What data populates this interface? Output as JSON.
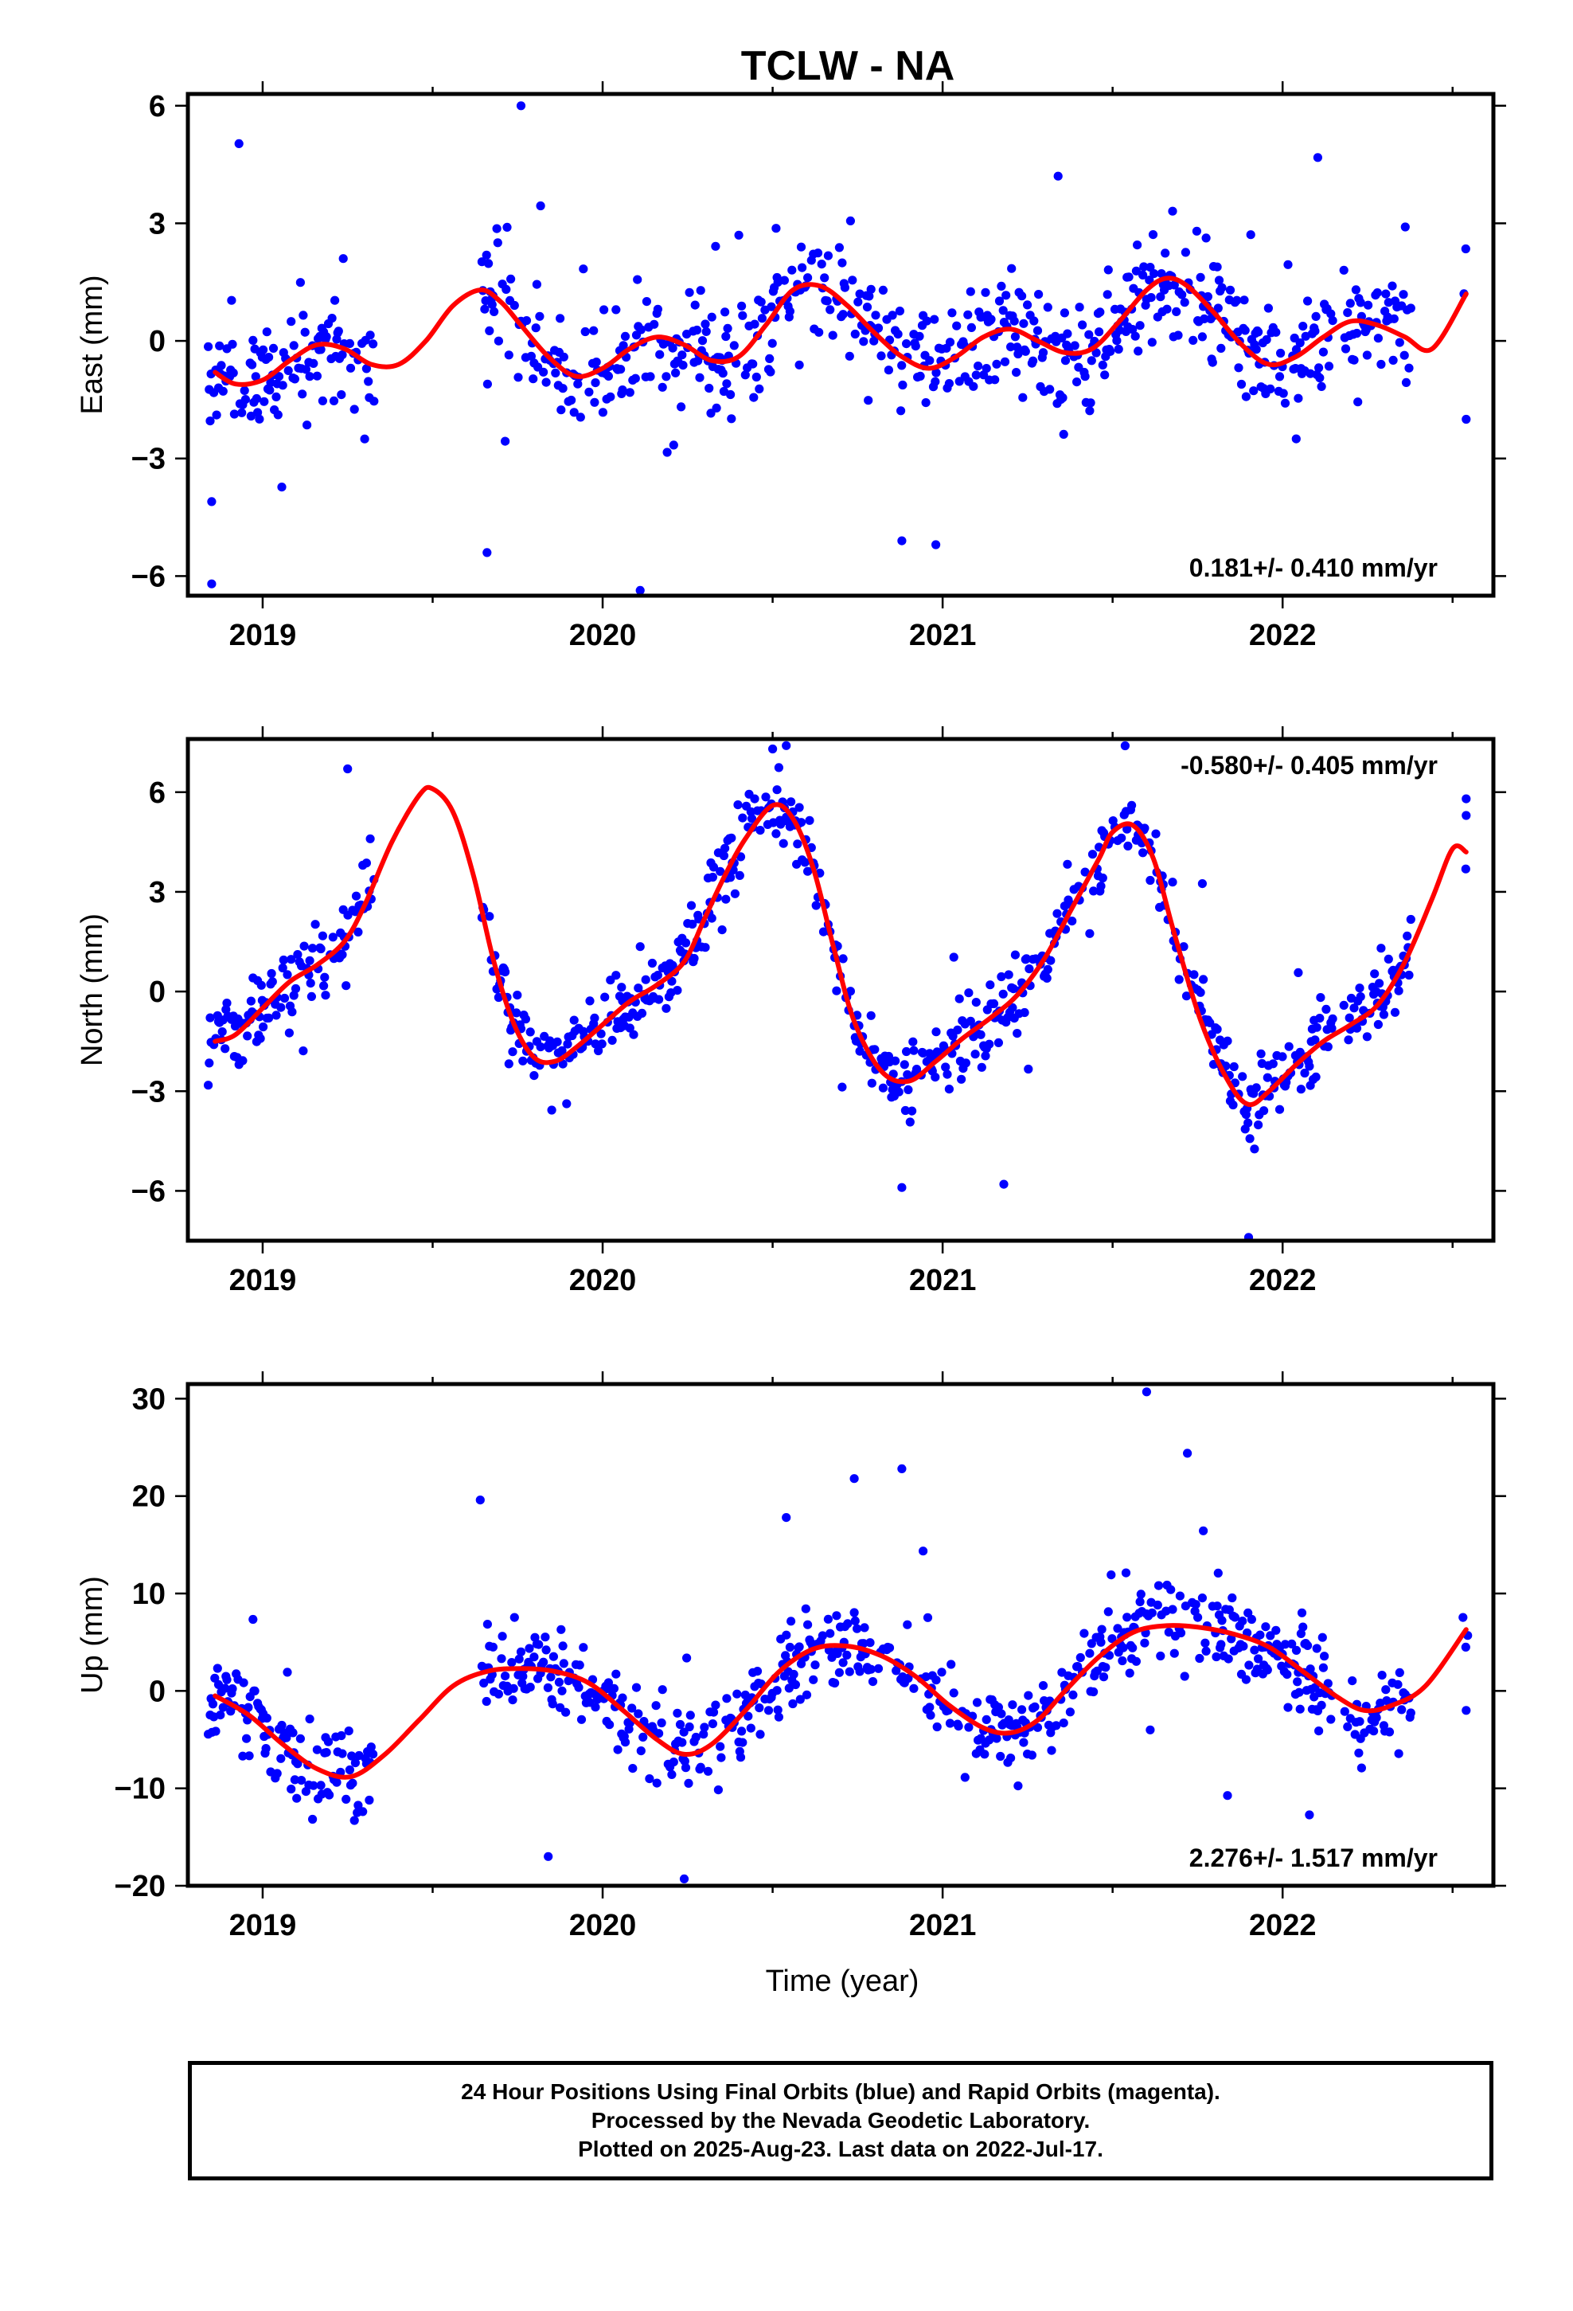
{
  "title": "TCLW - NA",
  "xlabel": "Time (year)",
  "caption": [
    "24 Hour Positions Using Final Orbits (blue) and Rapid Orbits (magenta).",
    "Processed by the Nevada Geodetic Laboratory.",
    "Plotted on 2025-Aug-23. Last data on 2022-Jul-17."
  ],
  "colors": {
    "final_orbits": "#0000ff",
    "model_fit": "#ff0000",
    "axes": "#000000"
  },
  "chart_data": [
    {
      "type": "scatter",
      "ylabel": "East (mm)",
      "rate_label": "0.181+/- 0.410 mm/yr",
      "xlim": [
        2018.78,
        2022.62
      ],
      "ylim": [
        -6.5,
        6.3
      ],
      "xticks": [
        2019,
        2020,
        2021,
        2022
      ],
      "xtick_labels": [
        "2019",
        "2020",
        "2021",
        "2022"
      ],
      "yticks": [
        -6,
        -3,
        0,
        3,
        6
      ],
      "ytick_labels": [
        "−6",
        "−3",
        "0",
        "3",
        "6"
      ],
      "fit": {
        "name": "model",
        "x": [
          2018.86,
          2018.92,
          2019.0,
          2019.08,
          2019.16,
          2019.24,
          2019.32,
          2019.4,
          2019.48,
          2019.56,
          2019.64,
          2019.7,
          2019.76,
          2019.84,
          2019.92,
          2020.0,
          2020.08,
          2020.16,
          2020.24,
          2020.32,
          2020.4,
          2020.48,
          2020.56,
          2020.64,
          2020.72,
          2020.8,
          2020.88,
          2020.96,
          2021.04,
          2021.12,
          2021.2,
          2021.28,
          2021.36,
          2021.44,
          2021.52,
          2021.6,
          2021.66,
          2021.72,
          2021.8,
          2021.88,
          2021.96,
          2022.04,
          2022.12,
          2022.2,
          2022.28,
          2022.36,
          2022.44,
          2022.54
        ],
        "y": [
          -0.8,
          -1.1,
          -1.0,
          -0.5,
          -0.1,
          -0.2,
          -0.6,
          -0.6,
          0.0,
          0.9,
          1.3,
          1.0,
          0.4,
          -0.4,
          -0.9,
          -0.7,
          -0.2,
          0.1,
          -0.1,
          -0.5,
          -0.4,
          0.4,
          1.3,
          1.4,
          0.9,
          0.2,
          -0.4,
          -0.7,
          -0.4,
          0.1,
          0.3,
          0.0,
          -0.3,
          -0.2,
          0.5,
          1.3,
          1.6,
          1.4,
          0.7,
          -0.1,
          -0.6,
          -0.4,
          0.1,
          0.5,
          0.4,
          0.1,
          -0.2,
          1.2
        ]
      },
      "obs_model": {
        "seed": 11,
        "noise": 1.25,
        "outlier_rate": 0.05,
        "outlier_scale": 3.2
      },
      "obs_extra": {
        "x": [
          2018.85,
          2018.85,
          2019.66,
          2019.76,
          2020.88,
          2020.98,
          2022.04,
          2022.54
        ],
        "y": [
          -6.2,
          -4.1,
          -5.4,
          6.0,
          -5.1,
          -5.2,
          -2.5,
          -2.0
        ]
      }
    },
    {
      "type": "scatter",
      "ylabel": "North (mm)",
      "rate_label": "-0.580+/- 0.405 mm/yr",
      "xlim": [
        2018.78,
        2022.62
      ],
      "ylim": [
        -7.5,
        7.6
      ],
      "xticks": [
        2019,
        2020,
        2021,
        2022
      ],
      "xtick_labels": [
        "2019",
        "2020",
        "2021",
        "2022"
      ],
      "yticks": [
        -6,
        -3,
        0,
        3,
        6
      ],
      "ytick_labels": [
        "−6",
        "−3",
        "0",
        "3",
        "6"
      ],
      "fit": {
        "name": "model",
        "x": [
          2018.86,
          2018.92,
          2019.0,
          2019.08,
          2019.16,
          2019.24,
          2019.3,
          2019.38,
          2019.46,
          2019.5,
          2019.56,
          2019.62,
          2019.68,
          2019.74,
          2019.8,
          2019.86,
          2019.92,
          2020.0,
          2020.08,
          2020.16,
          2020.24,
          2020.3,
          2020.36,
          2020.42,
          2020.5,
          2020.56,
          2020.62,
          2020.68,
          2020.74,
          2020.82,
          2020.9,
          2020.98,
          2021.06,
          2021.14,
          2021.22,
          2021.3,
          2021.38,
          2021.46,
          2021.5,
          2021.56,
          2021.62,
          2021.68,
          2021.76,
          2021.84,
          2021.9,
          2021.96,
          2022.04,
          2022.12,
          2022.2,
          2022.28,
          2022.36,
          2022.44,
          2022.5,
          2022.54
        ],
        "y": [
          -1.5,
          -1.3,
          -0.5,
          0.3,
          0.8,
          1.5,
          2.6,
          4.5,
          5.9,
          6.1,
          5.4,
          3.5,
          0.9,
          -1.0,
          -2.0,
          -2.1,
          -1.7,
          -1.0,
          -0.3,
          0.2,
          0.9,
          2.2,
          3.5,
          4.6,
          5.6,
          5.2,
          3.7,
          1.3,
          -0.9,
          -2.4,
          -2.7,
          -2.1,
          -1.4,
          -0.8,
          -0.1,
          1.0,
          2.5,
          4.0,
          4.8,
          5.0,
          4.0,
          1.8,
          -0.9,
          -2.7,
          -3.4,
          -3.0,
          -2.2,
          -1.5,
          -1.0,
          -0.4,
          0.9,
          2.8,
          4.3,
          4.2
        ]
      },
      "obs_model": {
        "seed": 23,
        "noise": 1.0,
        "outlier_rate": 0.04,
        "outlier_scale": 3.0
      },
      "obs_extra": {
        "x": [
          2019.25,
          2020.5,
          2020.54,
          2020.88,
          2021.18,
          2021.9,
          2022.54,
          2022.54
        ],
        "y": [
          6.7,
          7.3,
          7.4,
          -5.9,
          -5.8,
          -7.4,
          5.8,
          5.3
        ]
      }
    },
    {
      "type": "scatter",
      "ylabel": "Up (mm)",
      "rate_label": "2.276+/- 1.517 mm/yr",
      "xlim": [
        2018.78,
        2022.62
      ],
      "ylim": [
        -20,
        31.5
      ],
      "xticks": [
        2019,
        2020,
        2021,
        2022
      ],
      "xtick_labels": [
        "2019",
        "2020",
        "2021",
        "2022"
      ],
      "yticks": [
        -20,
        -10,
        0,
        10,
        20,
        30
      ],
      "ytick_labels": [
        "−20",
        "−10",
        "0",
        "10",
        "20",
        "30"
      ],
      "fit": {
        "name": "model",
        "x": [
          2018.86,
          2018.96,
          2019.06,
          2019.16,
          2019.26,
          2019.36,
          2019.46,
          2019.56,
          2019.66,
          2019.76,
          2019.86,
          2019.96,
          2020.06,
          2020.16,
          2020.24,
          2020.32,
          2020.42,
          2020.52,
          2020.62,
          2020.72,
          2020.82,
          2020.92,
          2021.02,
          2021.12,
          2021.2,
          2021.28,
          2021.36,
          2021.46,
          2021.56,
          2021.66,
          2021.76,
          2021.86,
          2021.96,
          2022.06,
          2022.16,
          2022.24,
          2022.32,
          2022.42,
          2022.54
        ],
        "y": [
          -0.5,
          -2.5,
          -5.5,
          -8.0,
          -8.8,
          -6.5,
          -3.0,
          0.5,
          2.0,
          2.3,
          2.0,
          0.8,
          -2.0,
          -5.0,
          -6.5,
          -5.5,
          -2.0,
          2.0,
          4.3,
          4.6,
          3.6,
          1.5,
          -1.5,
          -3.8,
          -4.3,
          -3.0,
          0.0,
          3.5,
          6.0,
          6.7,
          6.5,
          5.8,
          4.5,
          2.0,
          -0.6,
          -2.0,
          -1.5,
          0.5,
          6.3
        ]
      },
      "obs_model": {
        "seed": 37,
        "noise": 3.8,
        "outlier_rate": 0.05,
        "outlier_scale": 3.0
      },
      "obs_extra": {
        "x": [
          2019.64,
          2019.84,
          2020.24,
          2020.54,
          2020.74,
          2020.88,
          2021.6,
          2021.72,
          2022.54
        ],
        "y": [
          19.6,
          -17.0,
          -19.3,
          17.8,
          21.8,
          22.8,
          30.7,
          24.4,
          -2.0
        ]
      }
    }
  ]
}
